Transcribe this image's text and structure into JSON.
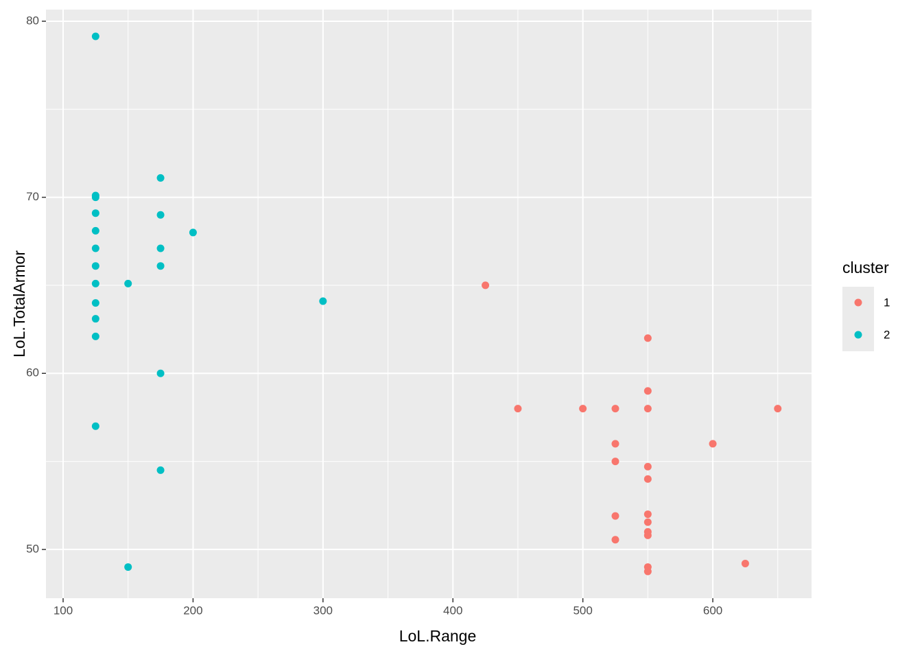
{
  "chart_data": {
    "type": "scatter",
    "x_label": "LoL.Range",
    "y_label": "LoL.TotalArmor",
    "legend_title": "cluster",
    "xlim": [
      86.8,
      676
    ],
    "ylim": [
      47.23,
      80.66
    ],
    "xticks": [
      100,
      200,
      300,
      400,
      500,
      600
    ],
    "yticks": [
      50,
      60,
      70,
      80
    ],
    "grid": true,
    "legend_position": "right",
    "series": [
      {
        "name": "1",
        "color": "#F8766D",
        "x": [
          425,
          450,
          500,
          525,
          525,
          525,
          525,
          525,
          550,
          550,
          550,
          550,
          550,
          550,
          550,
          550,
          550,
          550,
          550,
          600,
          625,
          650
        ],
        "values": [
          65,
          58,
          58,
          58,
          56,
          55,
          51.9,
          50.55,
          62,
          59,
          58,
          54.7,
          54,
          52,
          51.55,
          51,
          50.8,
          49,
          48.75,
          56,
          49.2,
          58
        ]
      },
      {
        "name": "2",
        "color": "#00BFC4",
        "x": [
          125,
          125,
          125,
          125,
          125,
          125,
          125,
          125,
          125,
          125,
          125,
          125,
          150,
          150,
          175,
          175,
          175,
          175,
          175,
          175,
          200,
          300
        ],
        "values": [
          79.14,
          70.1,
          70,
          69.1,
          68.1,
          67.1,
          66.1,
          65.1,
          64,
          63.1,
          62.1,
          57,
          65.1,
          49,
          71.1,
          69,
          67.1,
          66.1,
          60,
          54.5,
          68,
          64.1
        ]
      }
    ]
  }
}
